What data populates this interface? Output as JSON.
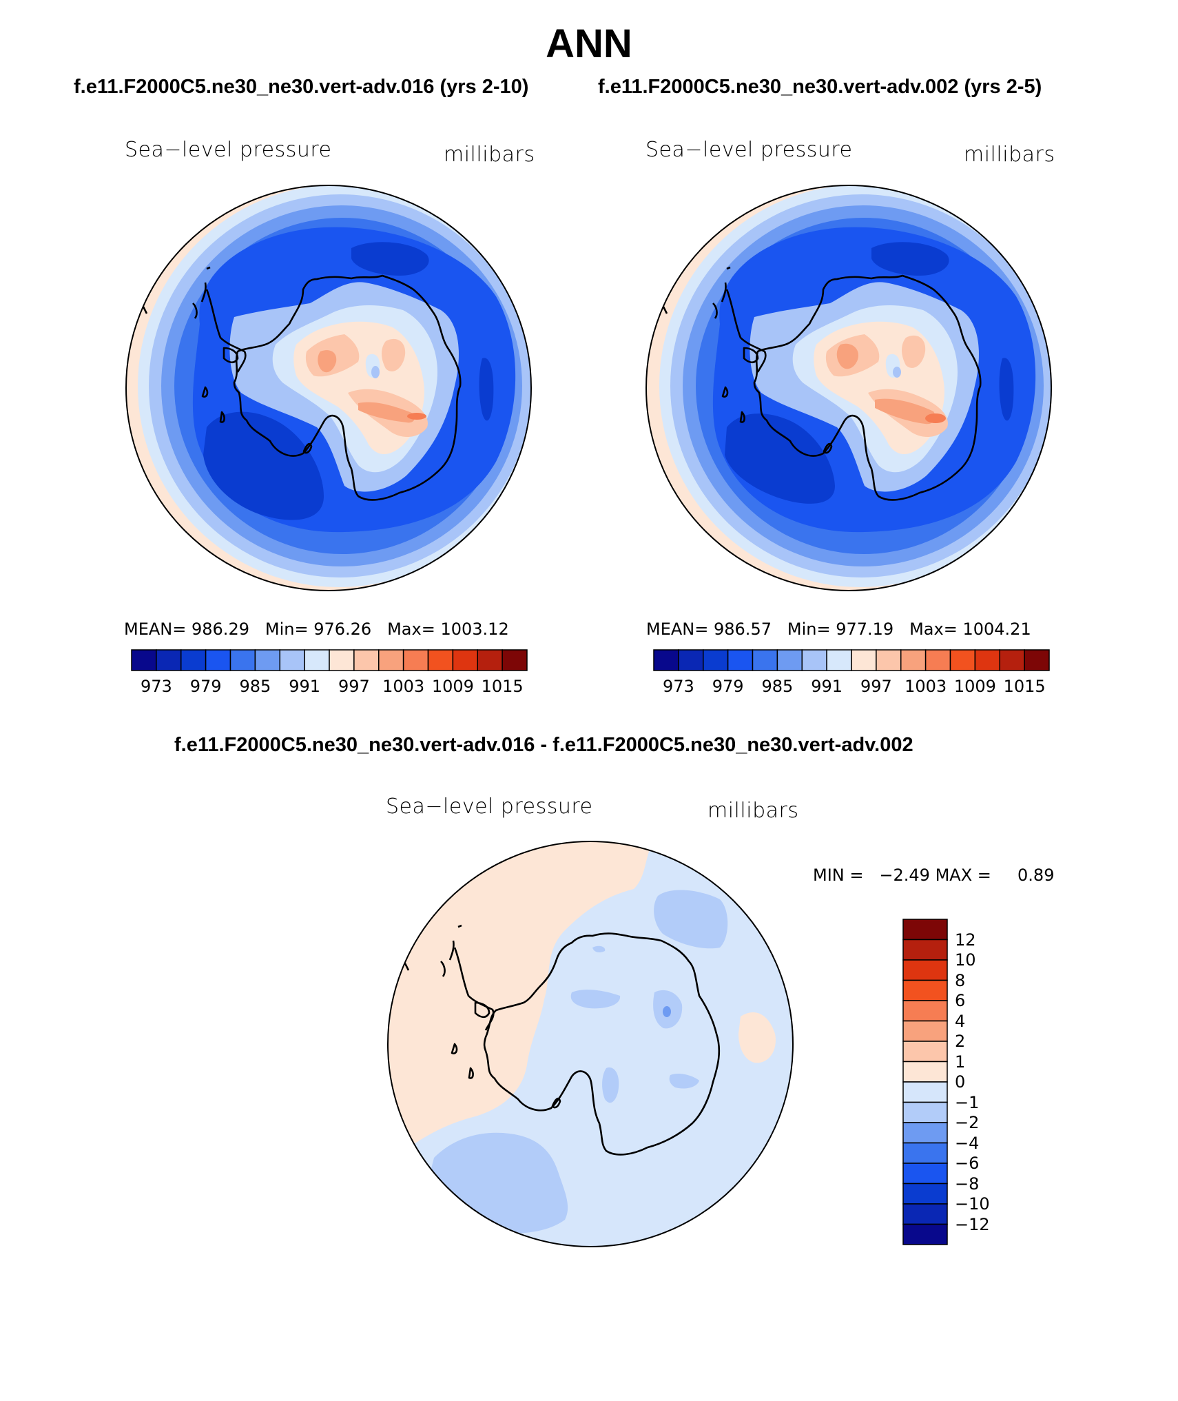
{
  "title": "ANN",
  "subtitle_left": "f.e11.F2000C5.ne30_ne30.vert-adv.016 (yrs 2-10)",
  "subtitle_right": "f.e11.F2000C5.ne30_ne30.vert-adv.002 (yrs 2-5)",
  "diff_title": "f.e11.F2000C5.ne30_ne30.vert-adv.016 - f.e11.F2000C5.ne30_ne30.vert-adv.002",
  "colors": {
    "abs": [
      "#08088c",
      "#0a27b4",
      "#0a3cd0",
      "#1a55f0",
      "#3a74ee",
      "#6e9bf2",
      "#a8c4f8",
      "#d7e8fb",
      "#fde6d6",
      "#fcc6ab",
      "#f8a27d",
      "#f67d53",
      "#f2521f",
      "#de3510",
      "#b5200e",
      "#7d0606"
    ],
    "diff": [
      "#08088c",
      "#0a27b4",
      "#0a3cd0",
      "#1a55f0",
      "#3a74ee",
      "#6e9bf2",
      "#b2ccf9",
      "#d6e6fb",
      "#fde6d6",
      "#fcc6ab",
      "#f8a27d",
      "#f67d53",
      "#f2521f",
      "#de3510",
      "#b5200e",
      "#7d0606"
    ]
  },
  "panels": {
    "left": {
      "var_label": "Sea−level pressure",
      "units": "millibars",
      "stats": {
        "mean_label": "MEAN=",
        "mean": "986.29",
        "min_label": "Min=",
        "min": "976.26",
        "max_label": "Max=",
        "max": "1003.12"
      },
      "colorbar_ticks": [
        "973",
        "979",
        "985",
        "991",
        "997",
        "1003",
        "1009",
        "1015"
      ]
    },
    "right": {
      "var_label": "Sea−level pressure",
      "units": "millibars",
      "stats": {
        "mean_label": "MEAN=",
        "mean": "986.57",
        "min_label": "Min=",
        "min": "977.19",
        "max_label": "Max=",
        "max": "1004.21"
      },
      "colorbar_ticks": [
        "973",
        "979",
        "985",
        "991",
        "997",
        "1003",
        "1009",
        "1015"
      ]
    },
    "diff": {
      "var_label": "Sea−level pressure",
      "units": "millibars",
      "min_label": "MIN =",
      "min": "−2.49",
      "max_label": "MAX =",
      "max": "0.89",
      "colorbar_ticks": [
        "12",
        "10",
        "8",
        "6",
        "4",
        "2",
        "1",
        "0",
        "−1",
        "−2",
        "−4",
        "−6",
        "−8",
        "−10",
        "−12"
      ]
    }
  }
}
